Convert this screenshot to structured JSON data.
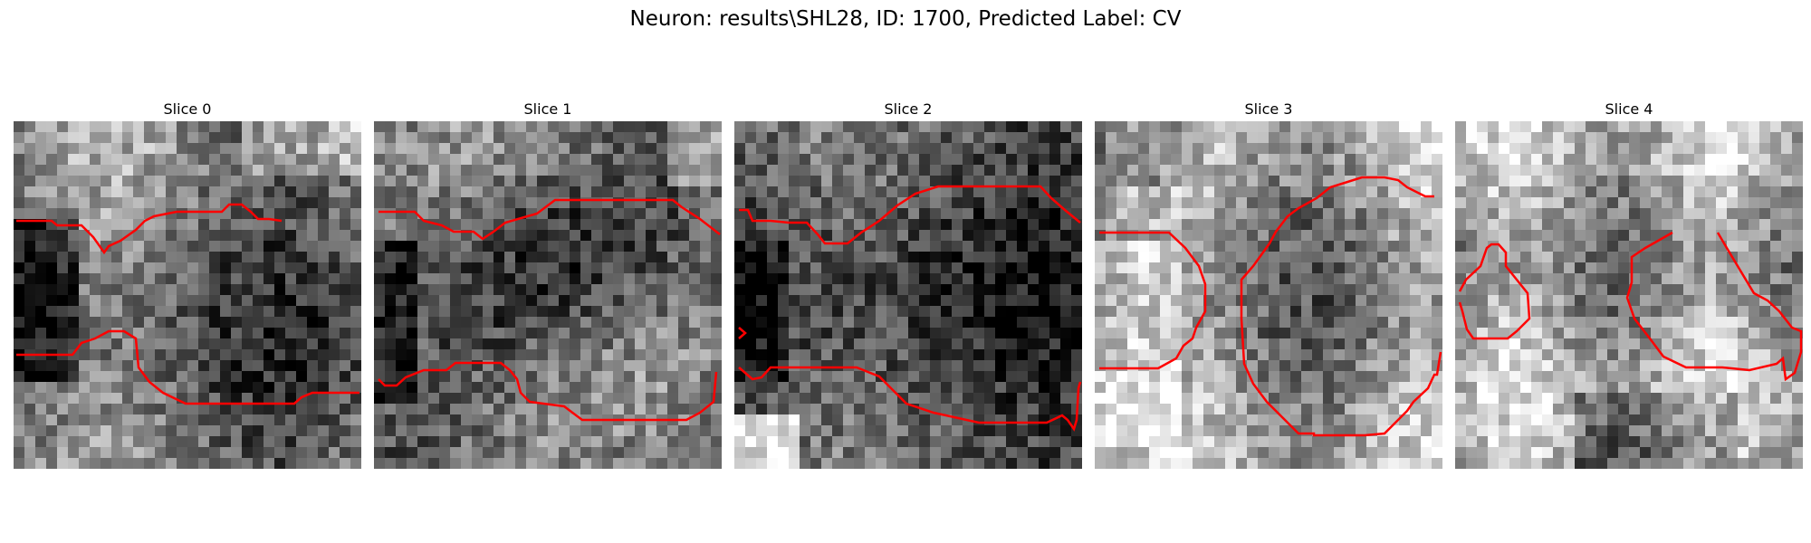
{
  "figure": {
    "title": "Neuron: results\\SHL28, ID: 1700, Predicted Label: CV"
  },
  "panels": [
    {
      "label": "Slice 0"
    },
    {
      "label": "Slice 1"
    },
    {
      "label": "Slice 2"
    },
    {
      "label": "Slice 3"
    },
    {
      "label": "Slice 4"
    }
  ],
  "colors": {
    "contour": "#ff0000",
    "background": "#ffffff"
  }
}
